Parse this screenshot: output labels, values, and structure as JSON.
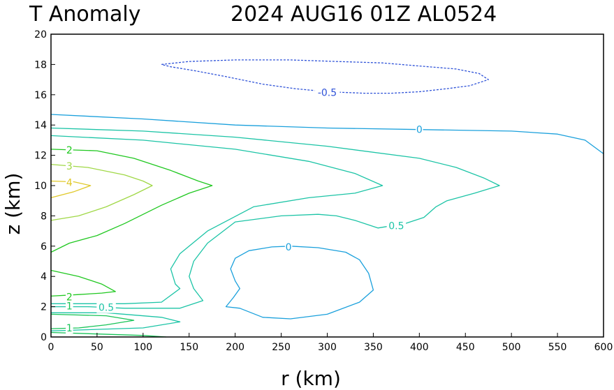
{
  "chart_data": {
    "type": "contour",
    "title_left": "T Anomaly",
    "title_right": "2024 AUG16 01Z   AL0524",
    "xlabel": "r (km)",
    "ylabel": "z (km)",
    "xlim": [
      0,
      600
    ],
    "ylim": [
      0,
      20
    ],
    "xticks": [
      "0",
      "50",
      "100",
      "150",
      "200",
      "250",
      "300",
      "350",
      "400",
      "450",
      "500",
      "550",
      "600"
    ],
    "yticks": [
      "0",
      "2",
      "4",
      "6",
      "8",
      "10",
      "12",
      "14",
      "16",
      "18",
      "20"
    ],
    "colors": {
      "-0.5": "#2e52d8",
      "0": "#1aa0dc",
      "0.5": "#1cc4a6",
      "1": "#18c458",
      "2": "#20c820",
      "3": "#a0d846",
      "4": "#e0c828"
    },
    "contours": [
      {
        "level": "-0.5",
        "dashed": true,
        "closed": true,
        "points": [
          [
            120,
            18
          ],
          [
            150,
            18.2
          ],
          [
            200,
            18.3
          ],
          [
            260,
            18.3
          ],
          [
            310,
            18.2
          ],
          [
            360,
            18.1
          ],
          [
            400,
            17.9
          ],
          [
            440,
            17.7
          ],
          [
            465,
            17.4
          ],
          [
            475,
            17.0
          ],
          [
            455,
            16.6
          ],
          [
            430,
            16.4
          ],
          [
            400,
            16.2
          ],
          [
            370,
            16.1
          ],
          [
            340,
            16.1
          ],
          [
            300,
            16.2
          ],
          [
            265,
            16.4
          ],
          [
            230,
            16.7
          ],
          [
            190,
            17.2
          ],
          [
            155,
            17.6
          ],
          [
            130,
            17.85
          ],
          [
            120,
            18
          ]
        ]
      },
      {
        "level": "0",
        "dashed": false,
        "closed": false,
        "points": [
          [
            0,
            14.7
          ],
          [
            100,
            14.4
          ],
          [
            200,
            14.0
          ],
          [
            300,
            13.8
          ],
          [
            400,
            13.7
          ],
          [
            500,
            13.6
          ],
          [
            550,
            13.4
          ],
          [
            580,
            13.0
          ],
          [
            600,
            12.1
          ]
        ]
      },
      {
        "level": "0",
        "dashed": false,
        "closed": true,
        "points": [
          [
            260,
            6.0
          ],
          [
            290,
            5.9
          ],
          [
            320,
            5.6
          ],
          [
            335,
            5.1
          ],
          [
            345,
            4.2
          ],
          [
            350,
            3.1
          ],
          [
            335,
            2.3
          ],
          [
            300,
            1.5
          ],
          [
            260,
            1.2
          ],
          [
            230,
            1.3
          ],
          [
            205,
            1.9
          ],
          [
            190,
            2.0
          ],
          [
            198,
            2.6
          ],
          [
            205,
            3.2
          ],
          [
            200,
            3.7
          ],
          [
            195,
            4.5
          ],
          [
            200,
            5.2
          ],
          [
            215,
            5.7
          ],
          [
            240,
            5.95
          ],
          [
            260,
            6.0
          ]
        ]
      },
      {
        "level": "0.5",
        "dashed": false,
        "closed": false,
        "points": [
          [
            0,
            13.8
          ],
          [
            100,
            13.6
          ],
          [
            200,
            13.2
          ],
          [
            300,
            12.6
          ],
          [
            400,
            11.8
          ],
          [
            440,
            11.2
          ],
          [
            470,
            10.5
          ],
          [
            487,
            10.0
          ],
          [
            460,
            9.5
          ],
          [
            430,
            9.0
          ],
          [
            418,
            8.6
          ],
          [
            405,
            7.9
          ],
          [
            385,
            7.5
          ],
          [
            355,
            7.2
          ],
          [
            330,
            7.7
          ],
          [
            310,
            8.0
          ],
          [
            290,
            8.1
          ],
          [
            250,
            8.0
          ],
          [
            200,
            7.6
          ],
          [
            170,
            6.2
          ],
          [
            155,
            5.0
          ],
          [
            150,
            4.0
          ],
          [
            155,
            3.2
          ],
          [
            165,
            2.4
          ],
          [
            140,
            1.9
          ],
          [
            80,
            1.9
          ],
          [
            40,
            2.0
          ],
          [
            0,
            2.0
          ]
        ]
      },
      {
        "level": "0.5",
        "dashed": false,
        "closed": false,
        "points": [
          [
            0,
            13.3
          ],
          [
            100,
            13.0
          ],
          [
            200,
            12.4
          ],
          [
            280,
            11.6
          ],
          [
            330,
            10.8
          ],
          [
            360,
            10.0
          ],
          [
            330,
            9.5
          ],
          [
            280,
            9.2
          ],
          [
            220,
            8.6
          ],
          [
            170,
            7.0
          ],
          [
            140,
            5.5
          ],
          [
            130,
            4.5
          ],
          [
            135,
            3.5
          ],
          [
            140,
            3.2
          ],
          [
            120,
            2.3
          ],
          [
            80,
            2.2
          ],
          [
            40,
            2.2
          ],
          [
            0,
            2.2
          ]
        ]
      },
      {
        "level": "0.5",
        "dashed": false,
        "closed": false,
        "points": [
          [
            0,
            1.6
          ],
          [
            60,
            1.6
          ],
          [
            120,
            1.3
          ],
          [
            140,
            1.0
          ],
          [
            100,
            0.6
          ],
          [
            50,
            0.5
          ],
          [
            0,
            0.4
          ]
        ]
      },
      {
        "level": "1",
        "dashed": false,
        "closed": false,
        "points": [
          [
            0,
            1.5
          ],
          [
            60,
            1.4
          ],
          [
            90,
            1.1
          ],
          [
            60,
            0.8
          ],
          [
            30,
            0.6
          ],
          [
            0,
            0.55
          ]
        ]
      },
      {
        "level": "1",
        "dashed": false,
        "closed": false,
        "points": [
          [
            0,
            0.3
          ],
          [
            50,
            0.2
          ],
          [
            100,
            0.1
          ],
          [
            125,
            0.0
          ]
        ]
      },
      {
        "level": "2",
        "dashed": false,
        "closed": false,
        "points": [
          [
            0,
            12.4
          ],
          [
            50,
            12.3
          ],
          [
            90,
            11.8
          ],
          [
            130,
            11.0
          ],
          [
            160,
            10.3
          ],
          [
            175,
            10.0
          ],
          [
            150,
            9.5
          ],
          [
            120,
            8.7
          ],
          [
            80,
            7.5
          ],
          [
            50,
            6.7
          ],
          [
            20,
            6.2
          ],
          [
            0,
            5.6
          ]
        ]
      },
      {
        "level": "2",
        "dashed": false,
        "closed": false,
        "points": [
          [
            0,
            4.4
          ],
          [
            30,
            4.0
          ],
          [
            55,
            3.5
          ],
          [
            70,
            3.0
          ],
          [
            55,
            2.9
          ],
          [
            30,
            2.8
          ],
          [
            0,
            2.7
          ]
        ]
      },
      {
        "level": "3",
        "dashed": false,
        "closed": false,
        "points": [
          [
            0,
            11.4
          ],
          [
            40,
            11.2
          ],
          [
            80,
            10.7
          ],
          [
            100,
            10.3
          ],
          [
            110,
            10.0
          ],
          [
            90,
            9.4
          ],
          [
            60,
            8.6
          ],
          [
            30,
            8.0
          ],
          [
            0,
            7.7
          ]
        ]
      },
      {
        "level": "4",
        "dashed": false,
        "closed": false,
        "points": [
          [
            0,
            10.3
          ],
          [
            25,
            10.25
          ],
          [
            43,
            10.0
          ],
          [
            25,
            9.6
          ],
          [
            0,
            9.2
          ]
        ]
      }
    ],
    "contour_labels": [
      {
        "text": "-0.5",
        "x": 300,
        "y": 16.15,
        "level": "-0.5"
      },
      {
        "text": "0",
        "x": 400,
        "y": 13.7,
        "level": "0"
      },
      {
        "text": "0",
        "x": 258,
        "y": 5.95,
        "level": "0"
      },
      {
        "text": "0.5",
        "x": 375,
        "y": 7.35,
        "level": "0.5"
      },
      {
        "text": "0.5",
        "x": 60,
        "y": 1.95,
        "level": "0.5"
      },
      {
        "text": "2",
        "x": 20,
        "y": 12.35,
        "level": "2"
      },
      {
        "text": "2",
        "x": 20,
        "y": 2.65,
        "level": "2"
      },
      {
        "text": "1",
        "x": 20,
        "y": 0.6,
        "level": "1"
      },
      {
        "text": "1",
        "x": 20,
        "y": 2.05,
        "level": "1"
      },
      {
        "text": "3",
        "x": 20,
        "y": 11.3,
        "level": "3"
      },
      {
        "text": "4",
        "x": 20,
        "y": 10.2,
        "level": "4"
      }
    ]
  }
}
